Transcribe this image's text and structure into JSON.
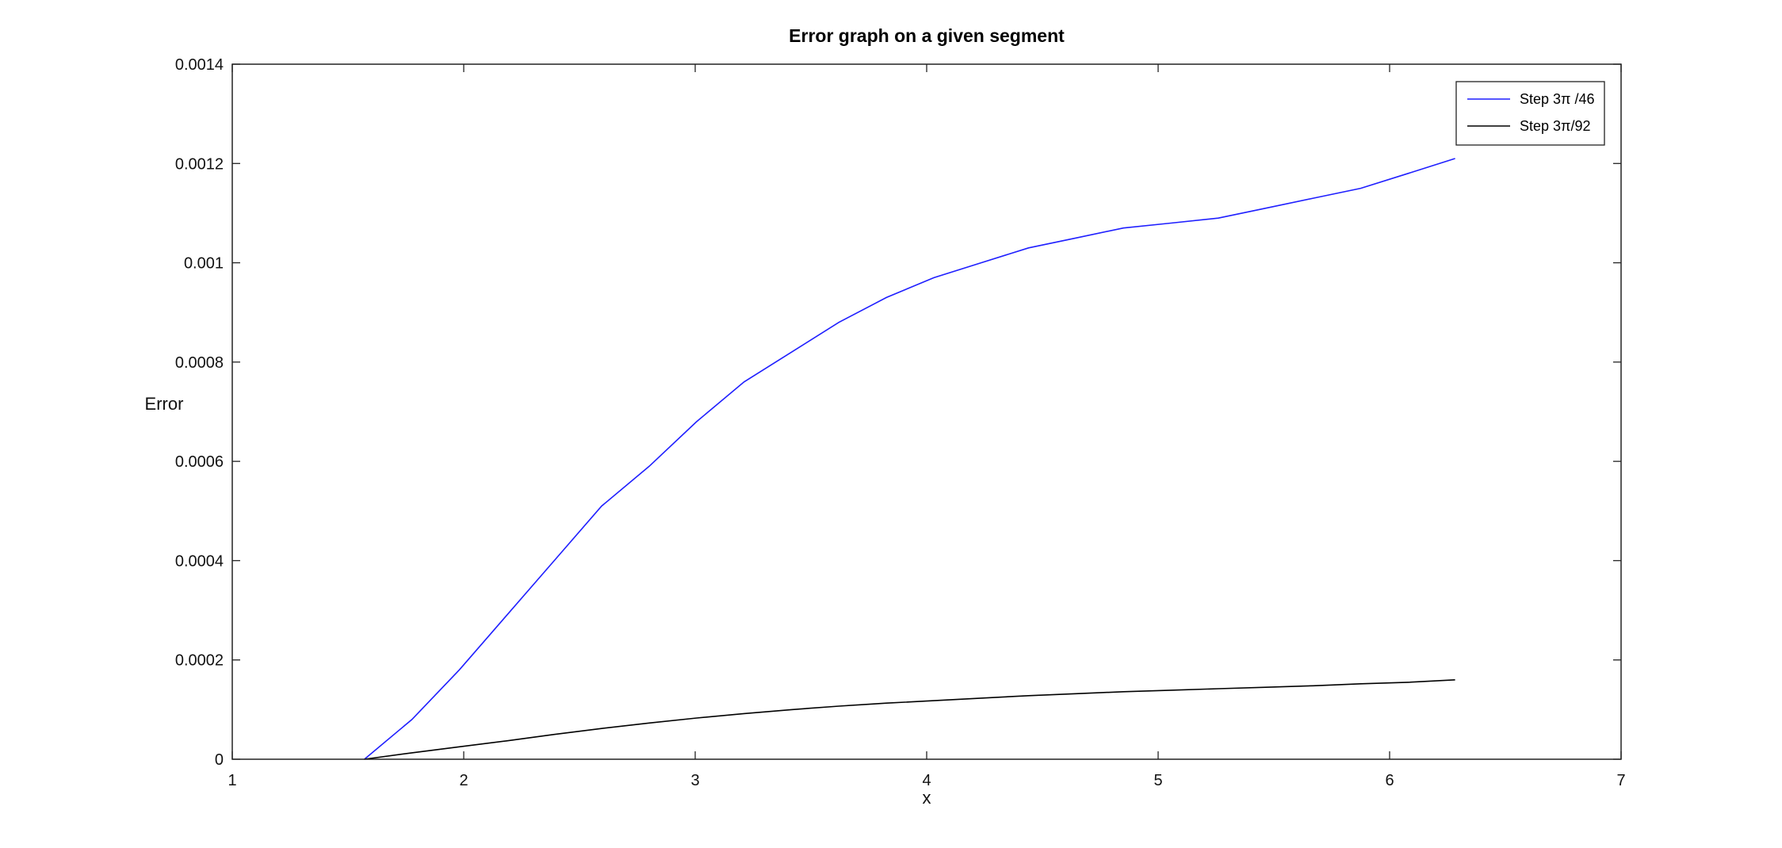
{
  "chart_data": {
    "type": "line",
    "title": "Error graph on a given segment",
    "xlabel": "x",
    "ylabel": "Error",
    "xlim": [
      1,
      7
    ],
    "ylim": [
      0,
      0.0014
    ],
    "xticks": [
      1,
      2,
      3,
      4,
      5,
      6,
      7
    ],
    "xtick_labels": [
      "1",
      "2",
      "3",
      "4",
      "5",
      "6",
      "7"
    ],
    "yticks": [
      0,
      0.0002,
      0.0004,
      0.0006,
      0.0008,
      0.001,
      0.0012,
      0.0014
    ],
    "ytick_labels": [
      "0",
      "0.0002",
      "0.0004",
      "0.0006",
      "0.0008",
      "0.001",
      "0.0012",
      "0.0014"
    ],
    "grid": false,
    "legend_position": "top-right",
    "series": [
      {
        "name": "Step 3π /46",
        "color": "#1f1fff",
        "x": [
          1.571,
          1.776,
          1.981,
          2.186,
          2.391,
          2.596,
          2.801,
          3.006,
          3.211,
          3.416,
          3.621,
          3.826,
          4.031,
          4.235,
          4.44,
          4.645,
          4.85,
          5.055,
          5.26,
          5.465,
          5.67,
          5.875,
          6.08,
          6.283
        ],
        "y": [
          0.0,
          8e-05,
          0.00018,
          0.00029,
          0.0004,
          0.00051,
          0.00059,
          0.00068,
          0.00076,
          0.00082,
          0.00088,
          0.00093,
          0.00097,
          0.001,
          0.00103,
          0.00105,
          0.00107,
          0.00108,
          0.00109,
          0.00111,
          0.00113,
          0.00115,
          0.00118,
          0.00121
        ]
      },
      {
        "name": "Step 3π/92",
        "color": "#000000",
        "x": [
          1.571,
          1.776,
          1.981,
          2.186,
          2.391,
          2.596,
          2.801,
          3.006,
          3.211,
          3.416,
          3.621,
          3.826,
          4.031,
          4.235,
          4.44,
          4.645,
          4.85,
          5.055,
          5.26,
          5.465,
          5.67,
          5.875,
          6.08,
          6.283
        ],
        "y": [
          0.0,
          1.3e-05,
          2.5e-05,
          3.7e-05,
          5e-05,
          6.2e-05,
          7.3e-05,
          8.3e-05,
          9.2e-05,
          0.0001,
          0.000107,
          0.000113,
          0.000118,
          0.000123,
          0.000128,
          0.000132,
          0.000136,
          0.000139,
          0.000142,
          0.000145,
          0.000148,
          0.000152,
          0.000155,
          0.00016
        ]
      }
    ]
  }
}
